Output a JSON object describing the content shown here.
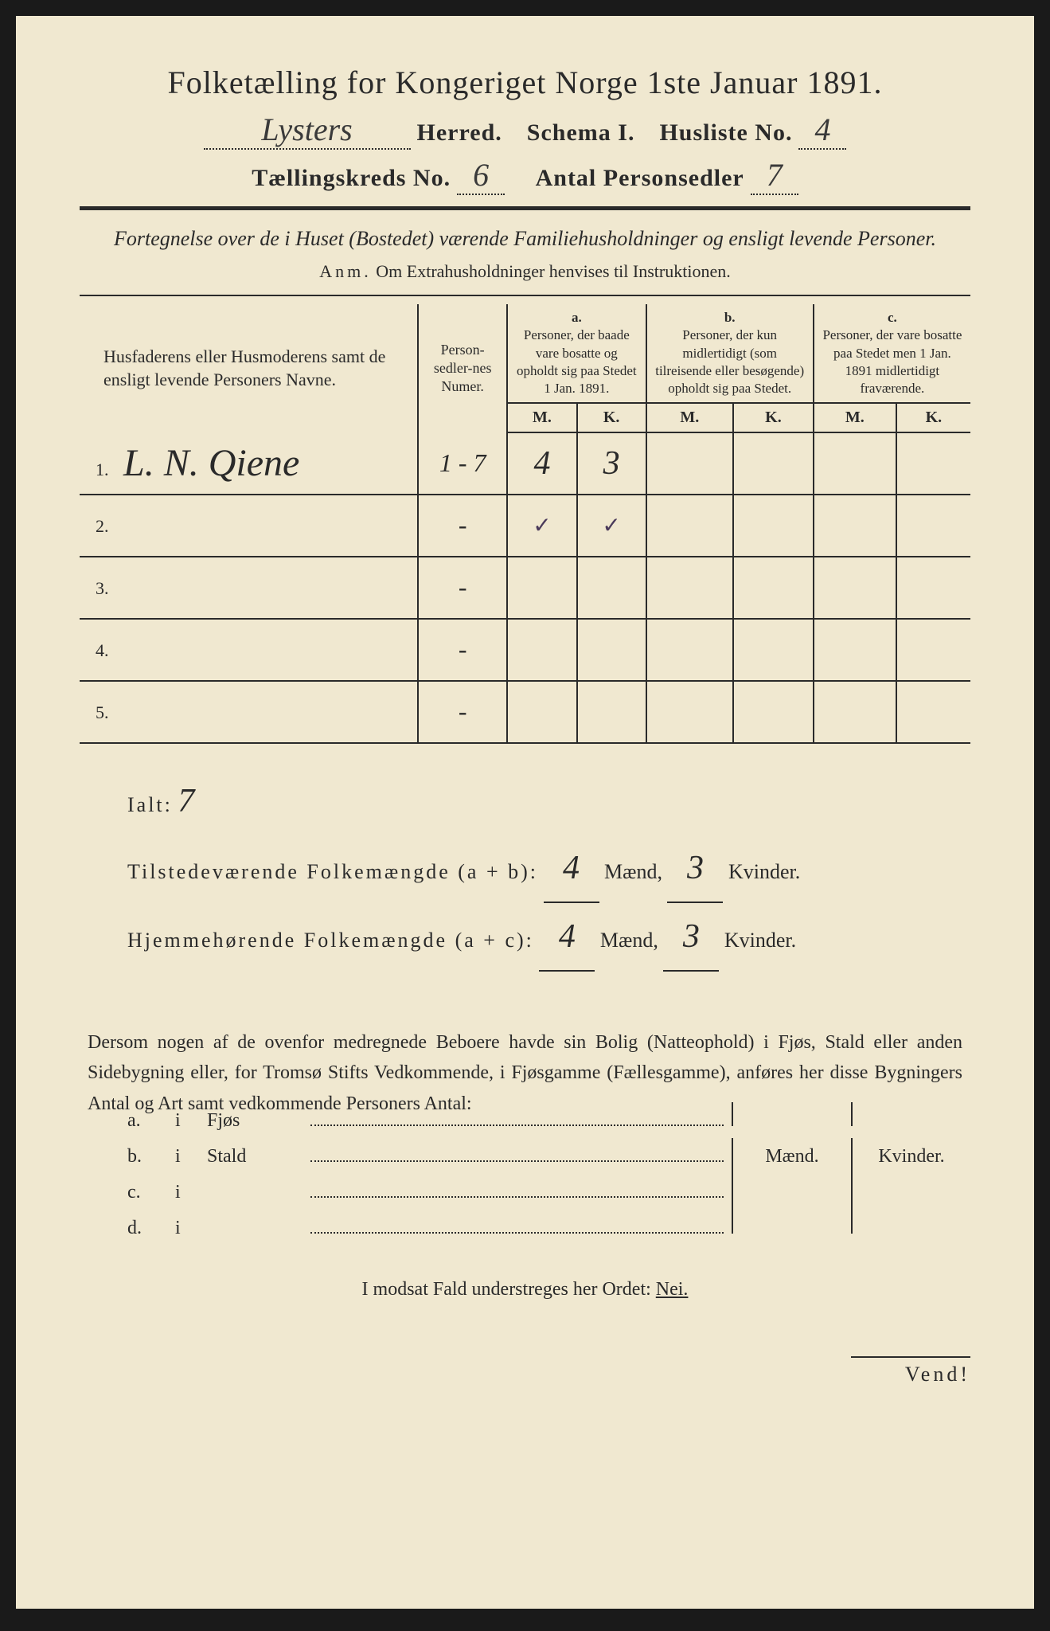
{
  "title": "Folketælling for Kongeriget Norge 1ste Januar 1891.",
  "header": {
    "herred_value": "Lysters",
    "herred_label": "Herred.",
    "schema_label": "Schema I.",
    "husliste_label": "Husliste No.",
    "husliste_value": "4",
    "kreds_label": "Tællingskreds No.",
    "kreds_value": "6",
    "antal_label": "Antal Personsedler",
    "antal_value": "7"
  },
  "subtitle": "Fortegnelse over de i Huset (Bostedet) værende Familiehusholdninger og ensligt levende Personer.",
  "anm_label": "Anm.",
  "anm_text": "Om Extrahusholdninger henvises til Instruktionen.",
  "table": {
    "col1": "Husfaderens eller Husmoderens samt de ensligt levende Personers Navne.",
    "col2": "Person-sedler-nes Numer.",
    "col_a_label": "a.",
    "col_a": "Personer, der baade vare bosatte og opholdt sig paa Stedet 1 Jan. 1891.",
    "col_b_label": "b.",
    "col_b": "Personer, der kun midlertidigt (som tilreisende eller besøgende) opholdt sig paa Stedet.",
    "col_c_label": "c.",
    "col_c": "Personer, der vare bosatte paa Stedet men 1 Jan. 1891 midlertidigt fraværende.",
    "m": "M.",
    "k": "K.",
    "rows": [
      {
        "n": "1.",
        "name": "L. N. Qiene",
        "num": "1 - 7",
        "am": "4",
        "ak": "3",
        "bm": "",
        "bk": "",
        "cm": "",
        "ck": ""
      },
      {
        "n": "2.",
        "name": "",
        "num": "-",
        "am": "✓",
        "ak": "✓",
        "bm": "",
        "bk": "",
        "cm": "",
        "ck": ""
      },
      {
        "n": "3.",
        "name": "",
        "num": "-",
        "am": "",
        "ak": "",
        "bm": "",
        "bk": "",
        "cm": "",
        "ck": ""
      },
      {
        "n": "4.",
        "name": "",
        "num": "-",
        "am": "",
        "ak": "",
        "bm": "",
        "bk": "",
        "cm": "",
        "ck": ""
      },
      {
        "n": "5.",
        "name": "",
        "num": "-",
        "am": "",
        "ak": "",
        "bm": "",
        "bk": "",
        "cm": "",
        "ck": ""
      }
    ]
  },
  "totals": {
    "ialt_label": "Ialt:",
    "ialt_value": "7",
    "line1_label": "Tilstedeværende Folkemængde (a + b):",
    "line1_m": "4",
    "line1_k": "3",
    "line2_label": "Hjemmehørende Folkemængde (a + c):",
    "line2_m": "4",
    "line2_k": "3",
    "maend": "Mænd,",
    "kvinder": "Kvinder."
  },
  "section_text": "Dersom nogen af de ovenfor medregnede Beboere havde sin Bolig (Natteophold) i Fjøs, Stald eller anden Sidebygning eller, for Tromsø Stifts Vedkommende, i Fjøsgamme (Fællesgamme), anføres her disse Bygningers Antal og Art samt vedkommende Personers Antal:",
  "outbuildings": {
    "maend": "Mænd.",
    "kvinder": "Kvinder.",
    "rows": [
      {
        "a": "a.",
        "i": "i",
        "label": "Fjøs"
      },
      {
        "a": "b.",
        "i": "i",
        "label": "Stald"
      },
      {
        "a": "c.",
        "i": "i",
        "label": ""
      },
      {
        "a": "d.",
        "i": "i",
        "label": ""
      }
    ]
  },
  "nei_line": "I modsat Fald understreges her Ordet:",
  "nei": "Nei.",
  "vend": "Vend!",
  "colors": {
    "paper": "#f0e8d0",
    "ink": "#2a2a2a",
    "background": "#1a1a1a"
  }
}
